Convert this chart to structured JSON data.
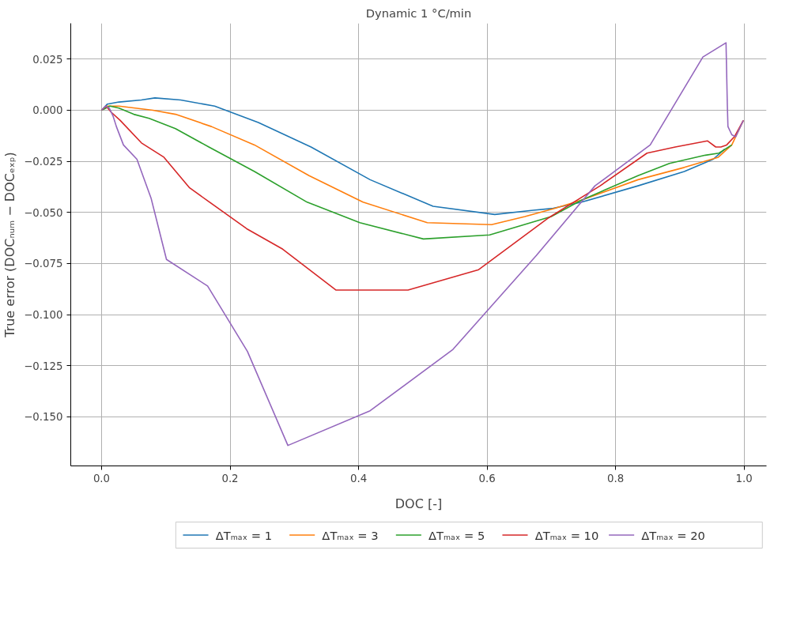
{
  "chart_data": {
    "type": "line",
    "title": "Dynamic 1 °C/min",
    "xlabel": "DOC [-]",
    "ylabel": "True error (DOCₙᵤₘ − DOCₑₓₚ)",
    "xlim": [
      -0.048,
      1.035
    ],
    "ylim": [
      -0.174,
      0.0425
    ],
    "xticks": [
      {
        "value": 0,
        "label": "0.0"
      },
      {
        "value": 0.2,
        "label": "0.2"
      },
      {
        "value": 0.4,
        "label": "0.4"
      },
      {
        "value": 0.6,
        "label": "0.6"
      },
      {
        "value": 0.8,
        "label": "0.8"
      },
      {
        "value": 1,
        "label": "1.0"
      }
    ],
    "yticks": [
      {
        "value": 0.025,
        "label": "0.025"
      },
      {
        "value": 0,
        "label": "0.000"
      },
      {
        "value": -0.025,
        "label": "−0.025"
      },
      {
        "value": -0.05,
        "label": "−0.050"
      },
      {
        "value": -0.075,
        "label": "−0.075"
      },
      {
        "value": -0.1,
        "label": "−0.100"
      },
      {
        "value": -0.125,
        "label": "−0.125"
      },
      {
        "value": -0.15,
        "label": "−0.150"
      }
    ],
    "grid": true,
    "legend": "bottom",
    "line_style": "solid",
    "marker": "none",
    "series": [
      {
        "name": "ΔTₘₐₓ = 1",
        "color": "#1f77b4",
        "x": [
          0,
          0.009,
          0.027,
          0.062,
          0.083,
          0.123,
          0.176,
          0.244,
          0.326,
          0.418,
          0.516,
          0.612,
          0.669,
          0.703,
          0.747,
          0.835,
          0.907,
          0.952,
          0.97
        ],
        "values": [
          0,
          0.003,
          0.004,
          0.005,
          0.006,
          0.005,
          0.002,
          -0.006,
          -0.018,
          -0.034,
          -0.047,
          -0.051,
          -0.049,
          -0.048,
          -0.045,
          -0.037,
          -0.03,
          -0.024,
          -0.019
        ]
      },
      {
        "name": "ΔTₘₐₓ = 3",
        "color": "#ff7f0e",
        "x": [
          0,
          0.009,
          0.027,
          0.08,
          0.115,
          0.171,
          0.238,
          0.323,
          0.407,
          0.507,
          0.607,
          0.659,
          0.706,
          0.747,
          0.835,
          0.907,
          0.96,
          0.981,
          0.999
        ],
        "values": [
          0,
          0.002,
          0.002,
          0,
          -0.002,
          -0.008,
          -0.017,
          -0.032,
          -0.045,
          -0.055,
          -0.056,
          -0.052,
          -0.048,
          -0.044,
          -0.034,
          -0.028,
          -0.023,
          -0.017,
          -0.005
        ]
      },
      {
        "name": "ΔTₘₐₓ = 5",
        "color": "#2ca02c",
        "x": [
          0,
          0.013,
          0.027,
          0.05,
          0.074,
          0.115,
          0.167,
          0.238,
          0.32,
          0.402,
          0.501,
          0.604,
          0.7,
          0.747,
          0.835,
          0.884,
          0.94,
          0.961,
          0.981
        ],
        "values": [
          0,
          0.002,
          0.001,
          -0.002,
          -0.004,
          -0.009,
          -0.018,
          -0.03,
          -0.045,
          -0.055,
          -0.063,
          -0.061,
          -0.052,
          -0.044,
          -0.032,
          -0.026,
          -0.022,
          -0.021,
          -0.017
        ]
      },
      {
        "name": "ΔTₘₐₓ = 10",
        "color": "#d62728",
        "x": [
          0,
          0.007,
          0.015,
          0.029,
          0.062,
          0.097,
          0.137,
          0.226,
          0.282,
          0.365,
          0.477,
          0.587,
          0.694,
          0.776,
          0.849,
          0.893,
          0.943,
          0.956,
          0.964,
          0.973,
          0.985,
          0.999
        ],
        "values": [
          0,
          0.002,
          -0.001,
          -0.005,
          -0.016,
          -0.023,
          -0.038,
          -0.058,
          -0.068,
          -0.088,
          -0.088,
          -0.078,
          -0.053,
          -0.037,
          -0.021,
          -0.018,
          -0.015,
          -0.018,
          -0.018,
          -0.017,
          -0.013,
          -0.005
        ]
      },
      {
        "name": "ΔTₘₐₓ = 20",
        "color": "#9467bd",
        "x": [
          0,
          0.006,
          0.012,
          0.018,
          0.023,
          0.034,
          0.055,
          0.077,
          0.101,
          0.165,
          0.227,
          0.29,
          0.418,
          0.547,
          0.677,
          0.768,
          0.854,
          0.936,
          0.972,
          0.974,
          0.975,
          0.981,
          0.987,
          0.999
        ],
        "values": [
          0,
          0.002,
          0.001,
          -0.003,
          -0.008,
          -0.017,
          -0.024,
          -0.043,
          -0.073,
          -0.086,
          -0.118,
          -0.164,
          -0.147,
          -0.117,
          -0.071,
          -0.037,
          -0.017,
          0.026,
          0.033,
          0.003,
          -0.008,
          -0.012,
          -0.013,
          -0.005
        ]
      }
    ]
  }
}
